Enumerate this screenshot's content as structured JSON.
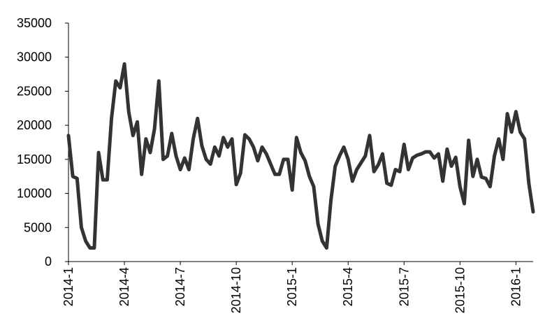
{
  "chart_data": {
    "type": "line",
    "categories": [
      "2014-1",
      null,
      null,
      null,
      null,
      null,
      null,
      null,
      null,
      null,
      null,
      null,
      null,
      "2014-4",
      null,
      null,
      null,
      null,
      null,
      null,
      null,
      null,
      null,
      null,
      null,
      null,
      "2014-7",
      null,
      null,
      null,
      null,
      null,
      null,
      null,
      null,
      null,
      null,
      null,
      null,
      "2014-10",
      null,
      null,
      null,
      null,
      null,
      null,
      null,
      null,
      null,
      null,
      null,
      null,
      "2015-1",
      null,
      null,
      null,
      null,
      null,
      null,
      null,
      null,
      null,
      null,
      null,
      null,
      "2015-4",
      null,
      null,
      null,
      null,
      null,
      null,
      null,
      null,
      null,
      null,
      null,
      null,
      "2015-7",
      null,
      null,
      null,
      null,
      null,
      null,
      null,
      null,
      null,
      null,
      null,
      null,
      "2015-10",
      null,
      null,
      null,
      null,
      null,
      null,
      null,
      null,
      null,
      null,
      null,
      null,
      "2016-1",
      null,
      null,
      null,
      null
    ],
    "values": [
      18500,
      12500,
      12200,
      5000,
      3000,
      2000,
      2000,
      16000,
      12000,
      12000,
      21000,
      26500,
      25500,
      29000,
      22000,
      18500,
      20500,
      12800,
      18000,
      16000,
      19500,
      26500,
      15000,
      15500,
      18800,
      15500,
      13500,
      15200,
      13500,
      18000,
      21000,
      17000,
      15000,
      14300,
      16800,
      15500,
      18200,
      16800,
      18000,
      11300,
      13000,
      18600,
      18000,
      16800,
      14800,
      16800,
      15800,
      14300,
      12800,
      12800,
      15000,
      15000,
      10500,
      18200,
      16000,
      14800,
      12500,
      11000,
      5500,
      3000,
      2000,
      9000,
      14000,
      15500,
      16800,
      15000,
      11800,
      13500,
      14500,
      15500,
      18500,
      13200,
      14200,
      15800,
      11500,
      11200,
      13500,
      13200,
      17200,
      13500,
      15200,
      15600,
      15800,
      16100,
      16100,
      15200,
      15800,
      11800,
      16500,
      14000,
      15300,
      11000,
      8500,
      17800,
      12500,
      15000,
      12400,
      12200,
      11000,
      15500,
      18000,
      15000,
      21700,
      19000,
      22000,
      19000,
      18000,
      11500,
      7300
    ],
    "color": "#333333",
    "ylim": [
      0,
      35000
    ],
    "yticks": [
      0,
      5000,
      10000,
      15000,
      20000,
      25000,
      30000,
      35000
    ],
    "grid": false
  }
}
